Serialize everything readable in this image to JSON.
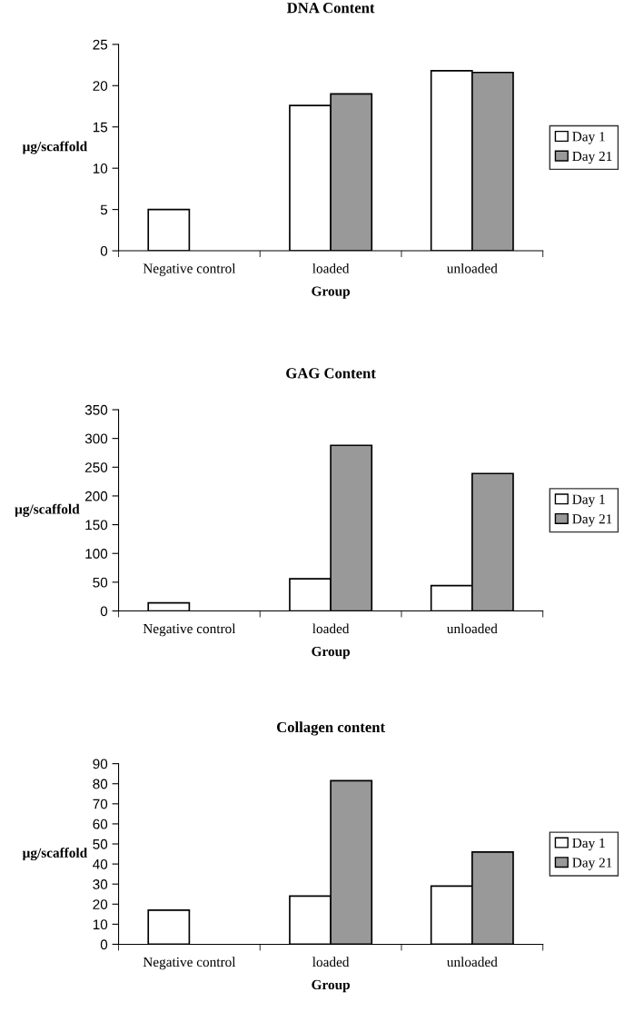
{
  "chart_data": [
    {
      "type": "bar",
      "title": "DNA Content",
      "xlabel": "Group",
      "ylabel": "µg/scaffold",
      "categories": [
        "Negative control",
        "loaded",
        "unloaded"
      ],
      "series": [
        {
          "name": "Day 1",
          "color": "#ffffff",
          "values": [
            5,
            17.6,
            21.8
          ]
        },
        {
          "name": "Day 21",
          "color": "#999999",
          "values": [
            null,
            19,
            21.6
          ]
        }
      ],
      "ylim": [
        0,
        25
      ],
      "yticks": [
        0,
        5,
        10,
        15,
        20,
        25
      ],
      "grid": false,
      "legend": "right"
    },
    {
      "type": "bar",
      "title": "GAG Content",
      "xlabel": "Group",
      "ylabel": "µg/scaffold",
      "categories": [
        "Negative control",
        "loaded",
        "unloaded"
      ],
      "series": [
        {
          "name": "Day 1",
          "color": "#ffffff",
          "values": [
            14,
            56,
            44
          ]
        },
        {
          "name": "Day 21",
          "color": "#999999",
          "values": [
            null,
            288,
            239
          ]
        }
      ],
      "ylim": [
        0,
        350
      ],
      "yticks": [
        0,
        50,
        100,
        150,
        200,
        250,
        300,
        350
      ],
      "grid": false,
      "legend": "right"
    },
    {
      "type": "bar",
      "title": "Collagen content",
      "xlabel": "Group",
      "ylabel": "µg/scaffold",
      "categories": [
        "Negative control",
        "loaded",
        "unloaded"
      ],
      "series": [
        {
          "name": "Day 1",
          "color": "#ffffff",
          "values": [
            17,
            24,
            29
          ]
        },
        {
          "name": "Day 21",
          "color": "#999999",
          "values": [
            null,
            81.5,
            46
          ]
        }
      ],
      "ylim": [
        0,
        90
      ],
      "yticks": [
        0,
        10,
        20,
        30,
        40,
        50,
        60,
        70,
        80,
        90
      ],
      "grid": false,
      "legend": "right"
    }
  ]
}
